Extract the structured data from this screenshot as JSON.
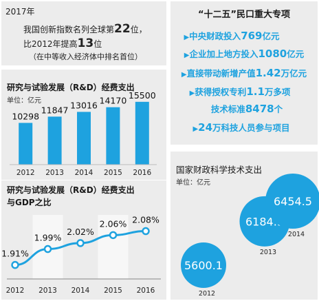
{
  "headline": {
    "year": "2017年",
    "line1_pre": "我国创新指数名列全球第",
    "line1_num": "22",
    "line1_post": "位，",
    "line2_pre": "比2012年提高",
    "line2_num": "13",
    "line2_post": "位",
    "line3": "（在中等收入经济体中排名首位）"
  },
  "plan": {
    "title": "“十二五”民口重大专项",
    "items": [
      {
        "pre": "中央财政投入",
        "num": "769",
        "post": "亿元"
      },
      {
        "pre": "企业加上地方投入",
        "num": "1080",
        "post": "亿元"
      },
      {
        "pre": "直接带动新增产值",
        "num": "1.42",
        "post": "万亿元"
      },
      {
        "pre": "获得授权专利",
        "num": "1.1",
        "post": "万多项"
      },
      {
        "pre": "技术标准",
        "num": "8478",
        "post": "个"
      },
      {
        "pre": "",
        "num": "24",
        "post": "万科技人员参与项目"
      }
    ],
    "arrow": "▶"
  },
  "colors": {
    "accent": "#1ea2df",
    "panel_bg": "#ececec",
    "band": "#f7f7f7",
    "dot_ring": "#1ea2df"
  },
  "chart_data": [
    {
      "type": "bar",
      "title": "研究与试验发展（R&D）经费支出",
      "unit": "单位：亿元",
      "categories": [
        "2012",
        "2013",
        "2014",
        "2015",
        "2016"
      ],
      "values": [
        10298,
        11847,
        13016,
        14170,
        15500
      ],
      "ylim": [
        0,
        17000
      ]
    },
    {
      "type": "line",
      "title_line1": "研究与试验发展（R&D）经费支出",
      "title_line2": "与GDP之比",
      "categories": [
        "2012",
        "2013",
        "2014",
        "2015",
        "2016"
      ],
      "values": [
        1.91,
        1.99,
        2.02,
        2.06,
        2.08
      ],
      "labels": [
        "1.91%",
        "1.99%",
        "2.02%",
        "2.06%",
        "2.08%"
      ],
      "ylim": [
        1.85,
        2.12
      ]
    },
    {
      "type": "scatter",
      "title": "国家财政科学技术支出",
      "unit": "单位：亿元",
      "categories": [
        "2012",
        "2013",
        "2014"
      ],
      "values": [
        5600.1,
        6184.9,
        6454.5
      ],
      "labels": [
        "5600.1",
        "6184.9",
        "6454.5"
      ]
    }
  ]
}
